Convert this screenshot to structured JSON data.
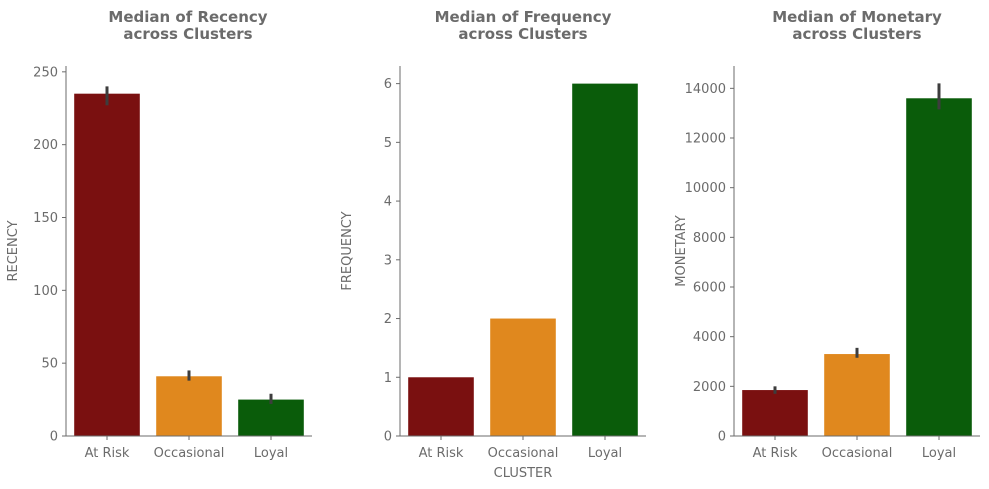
{
  "colors": {
    "at_risk": "#7a1010",
    "occasional": "#e0881e",
    "loyal": "#0a5c0a",
    "text": "#6b6b6b",
    "errorbar": "#3d3d3d"
  },
  "chart_data": [
    {
      "type": "bar",
      "title": "Median of Recency\nacross Clusters",
      "xlabel": "",
      "ylabel": "RECENCY",
      "categories": [
        "At Risk",
        "Occasional",
        "Loyal"
      ],
      "values": [
        235,
        41,
        25
      ],
      "error_low": [
        227,
        38,
        22
      ],
      "error_high": [
        240,
        45,
        29
      ],
      "ylim": [
        0,
        254
      ],
      "yticks": [
        0,
        50,
        100,
        150,
        200,
        250
      ]
    },
    {
      "type": "bar",
      "title": "Median of Frequency\nacross Clusters",
      "xlabel": "CLUSTER",
      "ylabel": "FREQUENCY",
      "categories": [
        "At Risk",
        "Occasional",
        "Loyal"
      ],
      "values": [
        1,
        2,
        6
      ],
      "error_low": [
        1,
        2,
        6
      ],
      "error_high": [
        1,
        2,
        6
      ],
      "ylim": [
        0,
        6.3
      ],
      "yticks": [
        0,
        1,
        2,
        3,
        4,
        5,
        6
      ]
    },
    {
      "type": "bar",
      "title": "Median of Monetary\nacross Clusters",
      "xlabel": "",
      "ylabel": "MONETARY",
      "categories": [
        "At Risk",
        "Occasional",
        "Loyal"
      ],
      "values": [
        1850,
        3300,
        13600
      ],
      "error_low": [
        1700,
        3150,
        13150
      ],
      "error_high": [
        2000,
        3550,
        14200
      ],
      "ylim": [
        0,
        14900
      ],
      "yticks": [
        0,
        2000,
        4000,
        6000,
        8000,
        10000,
        12000,
        14000
      ]
    }
  ]
}
